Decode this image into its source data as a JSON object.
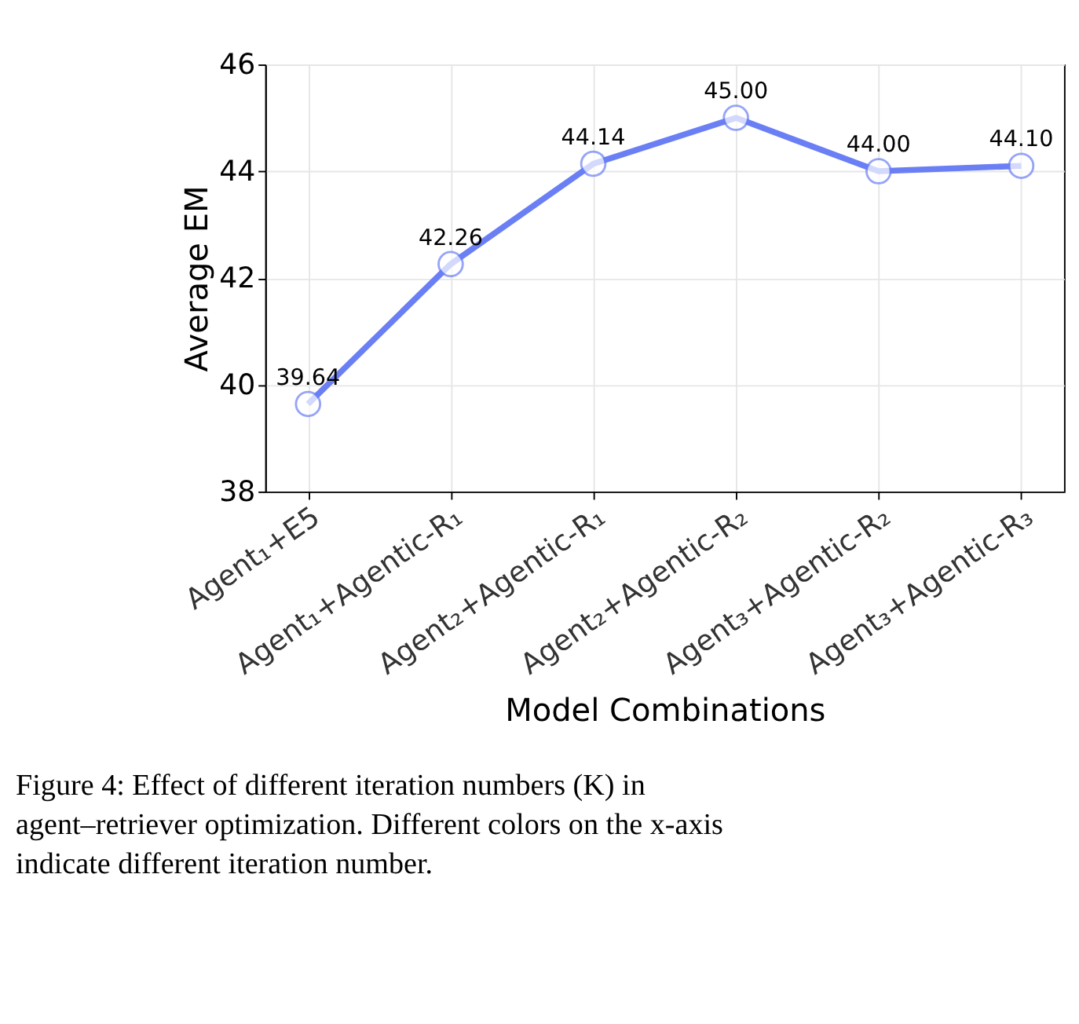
{
  "chart_data": {
    "type": "line",
    "categories": [
      "Agent₁+E5",
      "Agent₁+Agentic-R₁",
      "Agent₂+Agentic-R₁",
      "Agent₂+Agentic-R₂",
      "Agent₃+Agentic-R₂",
      "Agent₃+Agentic-R₃"
    ],
    "series": [
      {
        "color": "#6b7ff5",
        "values": [
          39.64,
          42.26,
          44.14,
          45.0,
          44.0,
          44.1
        ],
        "value_labels": [
          "39.64",
          "42.26",
          "44.14",
          "45.00",
          "44.00",
          "44.10"
        ]
      }
    ],
    "xlabel": "Model Combinations",
    "ylabel": "Average EM",
    "ylim": [
      38,
      46
    ],
    "yticks": [
      38,
      40,
      42,
      44,
      46
    ],
    "grid": true,
    "marker": "circle",
    "line_style": "solid",
    "annotations": [
      "Figure 4: Effect of different iteration numbers (K) in agent–retriever optimization. Different colors on the x-axis indicate different iteration number."
    ]
  }
}
